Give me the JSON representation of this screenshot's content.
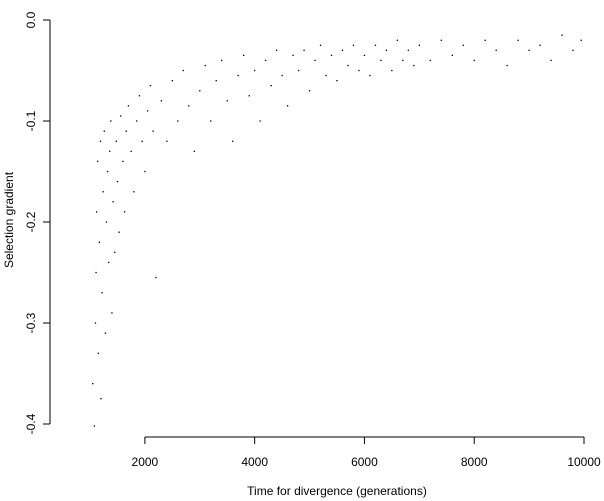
{
  "chart_data": {
    "type": "scatter",
    "title": "",
    "xlabel": "Time for divergence (generations)",
    "ylabel": "Selection gradient",
    "xlim": [
      1000,
      10000
    ],
    "ylim": [
      -0.4,
      0.0
    ],
    "x_ticks": [
      2000,
      4000,
      6000,
      8000,
      10000
    ],
    "y_ticks": [
      0.0,
      -0.1,
      -0.2,
      -0.3,
      -0.4
    ],
    "x_tick_labels": [
      "2000",
      "4000",
      "6000",
      "8000",
      "10000"
    ],
    "y_tick_labels": [
      "0.0",
      "-0.1",
      "-0.2",
      "-0.3",
      "-0.4"
    ],
    "grid": false,
    "legend": false,
    "point_color": "#000000",
    "series": [
      {
        "points": [
          [
            1050,
            -0.36
          ],
          [
            1080,
            -0.402
          ],
          [
            1100,
            -0.3
          ],
          [
            1110,
            -0.25
          ],
          [
            1120,
            -0.19
          ],
          [
            1140,
            -0.14
          ],
          [
            1150,
            -0.33
          ],
          [
            1170,
            -0.22
          ],
          [
            1190,
            -0.12
          ],
          [
            1200,
            -0.375
          ],
          [
            1220,
            -0.27
          ],
          [
            1240,
            -0.17
          ],
          [
            1260,
            -0.11
          ],
          [
            1280,
            -0.31
          ],
          [
            1300,
            -0.2
          ],
          [
            1320,
            -0.15
          ],
          [
            1340,
            -0.24
          ],
          [
            1360,
            -0.13
          ],
          [
            1380,
            -0.1
          ],
          [
            1400,
            -0.29
          ],
          [
            1420,
            -0.18
          ],
          [
            1450,
            -0.23
          ],
          [
            1480,
            -0.12
          ],
          [
            1500,
            -0.16
          ],
          [
            1530,
            -0.21
          ],
          [
            1560,
            -0.095
          ],
          [
            1600,
            -0.14
          ],
          [
            1630,
            -0.19
          ],
          [
            1660,
            -0.11
          ],
          [
            1700,
            -0.085
          ],
          [
            1750,
            -0.13
          ],
          [
            1800,
            -0.17
          ],
          [
            1850,
            -0.1
          ],
          [
            1900,
            -0.075
          ],
          [
            1950,
            -0.12
          ],
          [
            2000,
            -0.15
          ],
          [
            2050,
            -0.09
          ],
          [
            2100,
            -0.065
          ],
          [
            2150,
            -0.11
          ],
          [
            2200,
            -0.255
          ],
          [
            2300,
            -0.08
          ],
          [
            2400,
            -0.12
          ],
          [
            2500,
            -0.06
          ],
          [
            2600,
            -0.1
          ],
          [
            2700,
            -0.05
          ],
          [
            2800,
            -0.085
          ],
          [
            2900,
            -0.13
          ],
          [
            3000,
            -0.07
          ],
          [
            3100,
            -0.045
          ],
          [
            3200,
            -0.1
          ],
          [
            3300,
            -0.06
          ],
          [
            3400,
            -0.04
          ],
          [
            3500,
            -0.08
          ],
          [
            3600,
            -0.12
          ],
          [
            3700,
            -0.055
          ],
          [
            3800,
            -0.035
          ],
          [
            3900,
            -0.075
          ],
          [
            4000,
            -0.05
          ],
          [
            4100,
            -0.1
          ],
          [
            4200,
            -0.04
          ],
          [
            4300,
            -0.065
          ],
          [
            4400,
            -0.03
          ],
          [
            4500,
            -0.055
          ],
          [
            4600,
            -0.085
          ],
          [
            4700,
            -0.035
          ],
          [
            4800,
            -0.05
          ],
          [
            4900,
            -0.03
          ],
          [
            5000,
            -0.07
          ],
          [
            5100,
            -0.04
          ],
          [
            5200,
            -0.025
          ],
          [
            5300,
            -0.055
          ],
          [
            5400,
            -0.035
          ],
          [
            5500,
            -0.06
          ],
          [
            5600,
            -0.03
          ],
          [
            5700,
            -0.045
          ],
          [
            5800,
            -0.025
          ],
          [
            5900,
            -0.05
          ],
          [
            6000,
            -0.035
          ],
          [
            6100,
            -0.055
          ],
          [
            6200,
            -0.025
          ],
          [
            6300,
            -0.04
          ],
          [
            6400,
            -0.03
          ],
          [
            6500,
            -0.05
          ],
          [
            6600,
            -0.02
          ],
          [
            6700,
            -0.04
          ],
          [
            6800,
            -0.03
          ],
          [
            6900,
            -0.045
          ],
          [
            7000,
            -0.025
          ],
          [
            7200,
            -0.04
          ],
          [
            7400,
            -0.02
          ],
          [
            7600,
            -0.035
          ],
          [
            7800,
            -0.025
          ],
          [
            8000,
            -0.04
          ],
          [
            8200,
            -0.02
          ],
          [
            8400,
            -0.03
          ],
          [
            8600,
            -0.045
          ],
          [
            8800,
            -0.02
          ],
          [
            9000,
            -0.03
          ],
          [
            9200,
            -0.025
          ],
          [
            9400,
            -0.04
          ],
          [
            9600,
            -0.015
          ],
          [
            9800,
            -0.03
          ],
          [
            9950,
            -0.02
          ]
        ]
      }
    ]
  }
}
